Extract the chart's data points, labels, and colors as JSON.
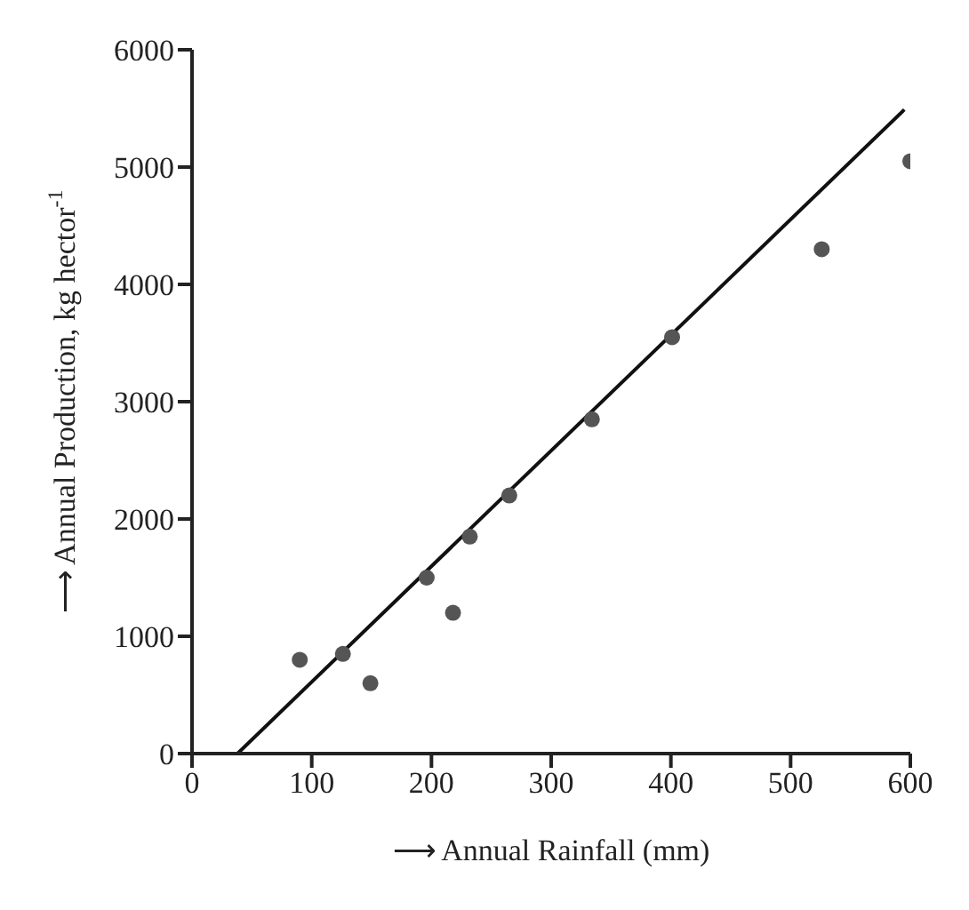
{
  "chart_data": {
    "type": "scatter",
    "xlabel": "⟶ Annual Rainfall (mm)",
    "ylabel": "⟶ Annual Production, kg hector$^{-1}$",
    "xlim": [
      0,
      600
    ],
    "ylim": [
      0,
      6000
    ],
    "xticks": [
      0,
      100,
      200,
      300,
      400,
      500,
      600
    ],
    "yticks": [
      0,
      1000,
      2000,
      3000,
      4000,
      5000,
      6000
    ],
    "grid": false,
    "legend": false,
    "marker": "circle",
    "series": [
      {
        "color": "#555555",
        "x": [
          90,
          126,
          149,
          196,
          218,
          232,
          265,
          334,
          401,
          526,
          600
        ],
        "values": [
          800,
          850,
          600,
          1500,
          1200,
          1850,
          2200,
          2850,
          3550,
          4300,
          5050
        ]
      },
      {
        "type": "line",
        "color": "#111111",
        "marker": "none",
        "line_style": "solid",
        "x": [
          38,
          595
        ],
        "values": [
          0,
          5490
        ]
      }
    ]
  }
}
